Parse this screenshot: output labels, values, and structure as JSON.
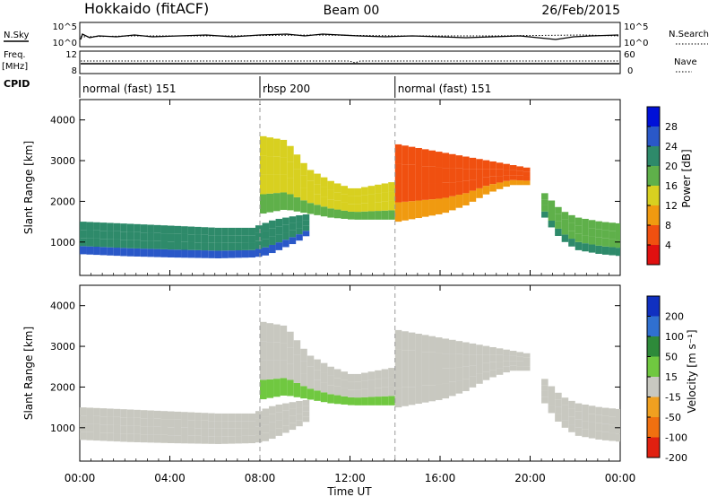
{
  "header": {
    "station": "Hokkaido (fitACF)",
    "beam": "Beam 00",
    "date": "26/Feb/2015"
  },
  "top_panels": {
    "nsky_label": "N.Sky",
    "nsearch_label": "N.Search",
    "noise_ticks_left": [
      "10^5",
      "10^0"
    ],
    "noise_ticks_right": [
      "10^5",
      "10^0"
    ],
    "freq_label": "Freq.",
    "freq_unit": "[MHz]",
    "freq_ticks": [
      "12",
      "8"
    ],
    "nave_label": "Nave",
    "nave_ticks": [
      "60",
      "0"
    ],
    "cpid_label": "CPID"
  },
  "cpid_segments": [
    {
      "start": 0,
      "end": 8,
      "label": "normal (fast) 151"
    },
    {
      "start": 8,
      "end": 14,
      "label": "rbsp 200"
    },
    {
      "start": 14,
      "end": 24,
      "label": "normal (fast) 151"
    }
  ],
  "axes": {
    "x_ticks": [
      "00:00",
      "04:00",
      "08:00",
      "12:00",
      "16:00",
      "20:00",
      "00:00"
    ],
    "x_label": "Time UT",
    "y_ticks": [
      "4000",
      "3000",
      "2000",
      "1000"
    ],
    "y_label": "Slant Range [km]"
  },
  "colorbars": {
    "power": {
      "label": "Power [dB]",
      "ticks": [
        "28",
        "24",
        "20",
        "16",
        "12",
        "8",
        "4"
      ],
      "colors": [
        "#0010d8",
        "#2a58c8",
        "#2e8a6a",
        "#5fb04a",
        "#d8d020",
        "#f09a10",
        "#f05010",
        "#e01010"
      ]
    },
    "velocity": {
      "label": "Velocity [m s⁻¹]",
      "ticks": [
        "200",
        "100",
        "50",
        "15",
        "-15",
        "-50",
        "-100",
        "-200"
      ],
      "colors": [
        "#1030c0",
        "#3070d0",
        "#2e8a3a",
        "#70c840",
        "#c8c8c0",
        "#f0a020",
        "#f07010",
        "#e02010"
      ]
    }
  },
  "chart_data": [
    {
      "type": "heatmap",
      "title": "Power",
      "xlabel": "Time UT",
      "ylabel": "Slant Range [km]",
      "xlim": [
        0,
        24
      ],
      "ylim": [
        180,
        4500
      ],
      "colorbar_label": "Power [dB]",
      "series": [
        {
          "name": "band1",
          "x": [
            0,
            2,
            4,
            6,
            7.5,
            8,
            8.5,
            9.5,
            10.2
          ],
          "range_low": [
            700,
            650,
            620,
            600,
            620,
            650,
            750,
            1000,
            1250
          ],
          "range_high": [
            1500,
            1450,
            1400,
            1350,
            1350,
            1450,
            1550,
            1650,
            1700
          ],
          "value": 22
        },
        {
          "name": "band2",
          "x": [
            8,
            9,
            10,
            11,
            12,
            13,
            14
          ],
          "range_low": [
            1700,
            1800,
            1700,
            1600,
            1550,
            1550,
            1550
          ],
          "range_high": [
            3600,
            3500,
            2800,
            2500,
            2300,
            2400,
            2500
          ],
          "value": 12
        },
        {
          "name": "band3",
          "x": [
            14,
            15,
            16,
            17,
            18,
            19,
            20
          ],
          "range_low": [
            1500,
            1600,
            1700,
            1900,
            2200,
            2400,
            2400
          ],
          "range_high": [
            3400,
            3300,
            3200,
            3100,
            3000,
            2900,
            2800
          ],
          "value": 6
        },
        {
          "name": "band4",
          "x": [
            20.5,
            21,
            21.5,
            22,
            23,
            24
          ],
          "range_low": [
            1600,
            1200,
            950,
            800,
            700,
            650
          ],
          "range_high": [
            2200,
            1900,
            1700,
            1600,
            1500,
            1450
          ],
          "value": 18
        }
      ]
    },
    {
      "type": "heatmap",
      "title": "Velocity",
      "xlabel": "Time UT",
      "ylabel": "Slant Range [km]",
      "xlim": [
        0,
        24
      ],
      "ylim": [
        180,
        4500
      ],
      "colorbar_label": "Velocity [m s⁻¹]",
      "series": [
        {
          "name": "band1",
          "x": [
            0,
            2,
            4,
            6,
            7.5,
            8,
            8.5,
            9.5,
            10.2
          ],
          "range_low": [
            700,
            650,
            620,
            600,
            620,
            650,
            750,
            1000,
            1250
          ],
          "range_high": [
            1500,
            1450,
            1400,
            1350,
            1350,
            1450,
            1550,
            1650,
            1700
          ],
          "value": 0
        },
        {
          "name": "band2",
          "x": [
            8,
            9,
            10,
            11,
            12,
            13,
            14
          ],
          "range_low": [
            1700,
            1800,
            1700,
            1600,
            1550,
            1550,
            1550
          ],
          "range_high": [
            3600,
            3500,
            2800,
            2500,
            2300,
            2400,
            2500
          ],
          "value": 0
        },
        {
          "name": "band3",
          "x": [
            14,
            15,
            16,
            17,
            18,
            19,
            20
          ],
          "range_low": [
            1500,
            1600,
            1700,
            1900,
            2200,
            2400,
            2400
          ],
          "range_high": [
            3400,
            3300,
            3200,
            3100,
            3000,
            2900,
            2800
          ],
          "value": 0
        },
        {
          "name": "band4",
          "x": [
            20.5,
            21,
            21.5,
            22,
            23,
            24
          ],
          "range_low": [
            1600,
            1200,
            950,
            800,
            700,
            650
          ],
          "range_high": [
            2200,
            1900,
            1700,
            1600,
            1500,
            1450
          ],
          "value": 0
        }
      ]
    }
  ]
}
